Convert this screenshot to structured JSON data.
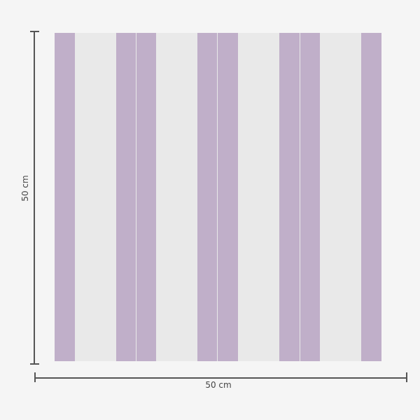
{
  "product": {
    "stripe_color": "#c0afc9",
    "base_color": "#e9e9e9",
    "background_color": "#f5f5f5"
  },
  "dimensions": {
    "height_label": "50 cm",
    "width_label": "50 cm"
  }
}
